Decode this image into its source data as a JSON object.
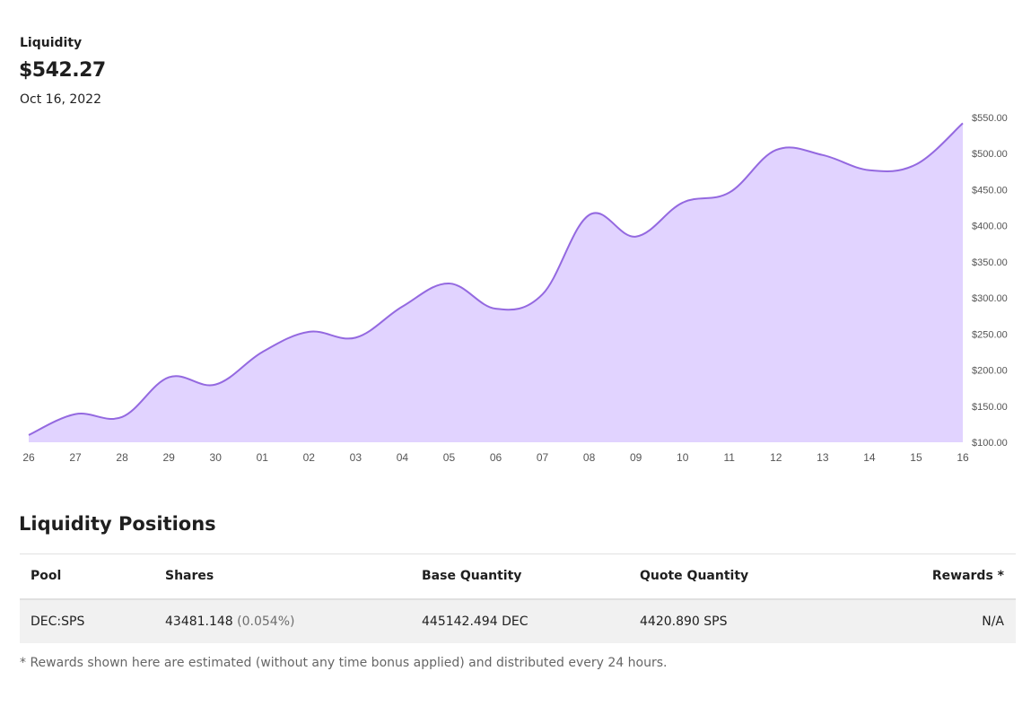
{
  "liquidity": {
    "label": "Liquidity",
    "value": "$542.27",
    "date": "Oct 16, 2022"
  },
  "colors": {
    "line": "#9469e0",
    "fill": "#e1d3ff",
    "axis_text": "#555555"
  },
  "chart_data": {
    "type": "area",
    "x": [
      "26",
      "27",
      "28",
      "29",
      "30",
      "01",
      "02",
      "03",
      "04",
      "05",
      "06",
      "07",
      "08",
      "09",
      "10",
      "11",
      "12",
      "13",
      "14",
      "15",
      "16"
    ],
    "values": [
      110,
      139,
      135,
      190,
      180,
      225,
      253,
      245,
      288,
      320,
      285,
      305,
      415,
      385,
      432,
      446,
      505,
      498,
      477,
      485,
      542
    ],
    "y_ticks": [
      "$100.00",
      "$150.00",
      "$200.00",
      "$250.00",
      "$300.00",
      "$350.00",
      "$400.00",
      "$450.00",
      "$500.00",
      "$550.00"
    ],
    "ylim": [
      100,
      550
    ],
    "grid": false,
    "y_axis_position": "right"
  },
  "positions": {
    "title": "Liquidity Positions",
    "headers": {
      "pool": "Pool",
      "shares": "Shares",
      "base": "Base Quantity",
      "quote": "Quote Quantity",
      "rewards": "Rewards *"
    },
    "rows": [
      {
        "pool": "DEC:SPS",
        "shares": "43481.148",
        "shares_pct": "(0.054%)",
        "base": "445142.494 DEC",
        "quote": "4420.890 SPS",
        "rewards": "N/A"
      }
    ],
    "footnote": "* Rewards shown here are estimated (without any time bonus applied) and distributed every 24 hours."
  }
}
